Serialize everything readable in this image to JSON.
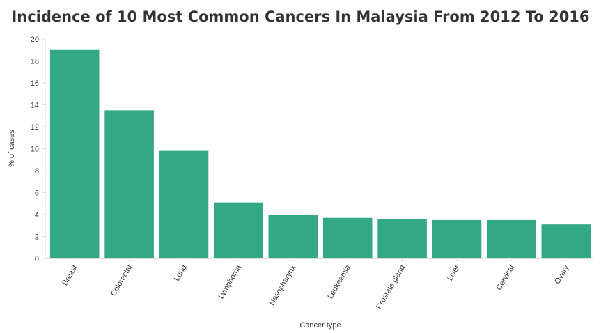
{
  "chart_data": {
    "type": "bar",
    "title": "Incidence of 10 Most Common Cancers In Malaysia From 2012 To 2016",
    "xlabel": "Cancer type",
    "ylabel": "% of cases",
    "categories": [
      "Breast",
      "Colorectal",
      "Lung",
      "Lymphoma",
      "Nasopharynx",
      "Leukaemia",
      "Prostate gland",
      "Liver",
      "Cervical",
      "Ovary"
    ],
    "values": [
      19.0,
      13.5,
      9.8,
      5.1,
      4.0,
      3.7,
      3.6,
      3.5,
      3.5,
      3.1
    ],
    "ylim": [
      0,
      20
    ],
    "yticks": [
      0,
      2,
      4,
      6,
      8,
      10,
      12,
      14,
      16,
      18,
      20
    ],
    "grid": false,
    "colors": {
      "bar": "#32a884",
      "axis": "#dddddd",
      "text": "#333333"
    }
  }
}
